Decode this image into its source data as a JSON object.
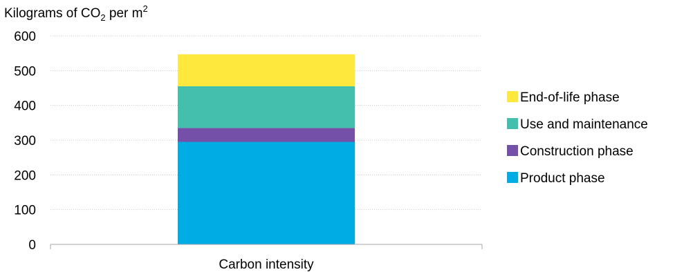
{
  "chart_data": {
    "type": "bar",
    "stacked": true,
    "ylabel": {
      "prefix": "Kilograms of CO",
      "sub": "2",
      "middle": " per m",
      "sup": "2"
    },
    "categories": [
      "Carbon intensity"
    ],
    "ylim": [
      0,
      600
    ],
    "yticks": [
      "0",
      "100",
      "200",
      "300",
      "400",
      "500",
      "600"
    ],
    "grid": true,
    "legend_position": "right",
    "series": [
      {
        "name": "Product phase",
        "values": [
          295
        ],
        "color": "#00ACE4"
      },
      {
        "name": "Construction phase",
        "values": [
          40
        ],
        "color": "#7450A8"
      },
      {
        "name": "Use and maintenance",
        "values": [
          120
        ],
        "color": "#44BFAD"
      },
      {
        "name": "End-of-life phase",
        "values": [
          92
        ],
        "color": "#FFE83E"
      }
    ]
  }
}
